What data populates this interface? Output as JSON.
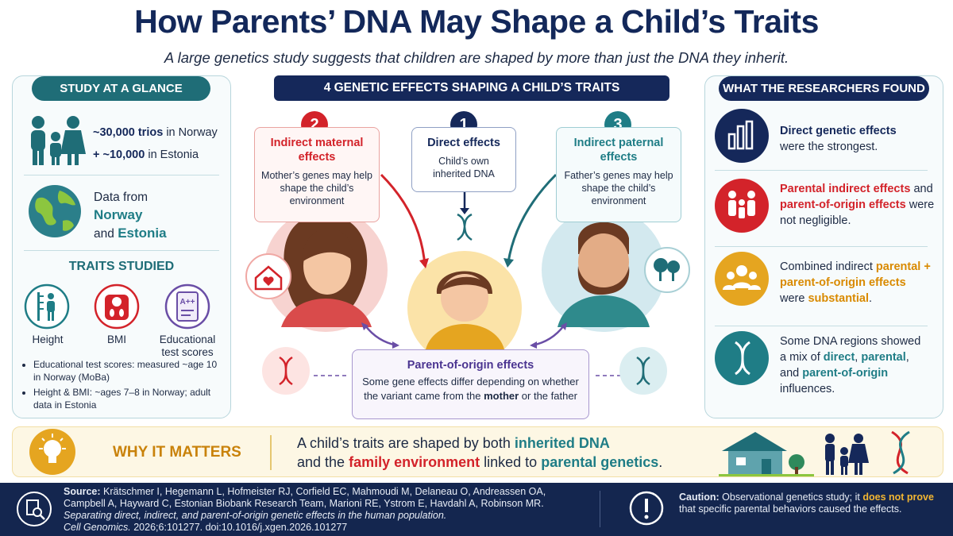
{
  "header": {
    "title": "How Parents’ DNA May Shape a Child’s Traits",
    "subtitle": "A large genetics study suggests that children are shaped by more than just the DNA they inherit."
  },
  "glance": {
    "title": "STUDY AT A GLANCE",
    "cohort": [
      "~30,000 trios",
      "in Norway",
      "+ ~10,000",
      "in Estonia"
    ],
    "data": [
      "Data from",
      "Norway",
      "and",
      "Estonia"
    ],
    "traits_title": "TRAITS STUDIED",
    "traits": [
      "Height",
      "BMI",
      "Educational test scores"
    ],
    "notes": [
      "Educational test scores: measured ~age 10 in Norway (MoBa)",
      "Height & BMI: ~ages 7–8 in Norway; adult data in Estonia"
    ]
  },
  "effects": {
    "title": "4 GENETIC EFFECTS SHAPING A CHILD’S TRAITS",
    "items": [
      {
        "number": "1",
        "title": "Direct effects",
        "text": "Child’s own inherited DNA"
      },
      {
        "number": "2",
        "title": "Indirect maternal effects",
        "text": "Mother’s genes may help shape the child’s environment"
      },
      {
        "number": "3",
        "title": "Indirect paternal effects",
        "text": "Father’s genes may help shape the child’s environment"
      }
    ],
    "origin": {
      "title": "Parent-of-origin effects",
      "parts": [
        "Some gene effects differ depending on whether the variant came from the",
        "mother",
        "or the father"
      ]
    }
  },
  "found": {
    "title": "WHAT THE RESEARCHERS FOUND",
    "items": [
      [
        "Direct genetic effects",
        "were the strongest."
      ],
      [
        "Parental indirect effects",
        "and",
        "parent-of-origin effects",
        "were",
        "not negligible."
      ],
      [
        "Combined indirect",
        "parental + parent-of-origin effects",
        "were",
        "substantial",
        "."
      ],
      [
        "Some DNA regions showed a mix of",
        "direct",
        ",",
        "parental",
        ", and",
        "parent-of-origin",
        "influences."
      ]
    ]
  },
  "why": {
    "title": "WHY IT MATTERS",
    "parts": [
      "A child’s traits are shaped by both",
      "inherited DNA",
      "and the",
      "family environment",
      "linked to",
      "parental genetics",
      "."
    ]
  },
  "footer": {
    "source_label": "Source:",
    "source": "Krätschmer I, Hegemann L, Hofmeister RJ, Corfield EC, Mahmoudi M, Delaneau O, Andreassen OA, Campbell A, Hayward C, Estonian Biobank Research Team, Marioni RE, Ystrom E, Havdahl A, Robinson MR.",
    "article": "Separating direct, indirect, and parent-of-origin genetic effects in the human population.",
    "journal": "Cell Genomics.",
    "citation": "2026;6:101277. doi:10.1016/j.xgen.2026.101277",
    "caution": [
      "Caution:",
      "Observational genetics study; it",
      "does not prove",
      "that specific parental behaviors caused the effects."
    ]
  }
}
